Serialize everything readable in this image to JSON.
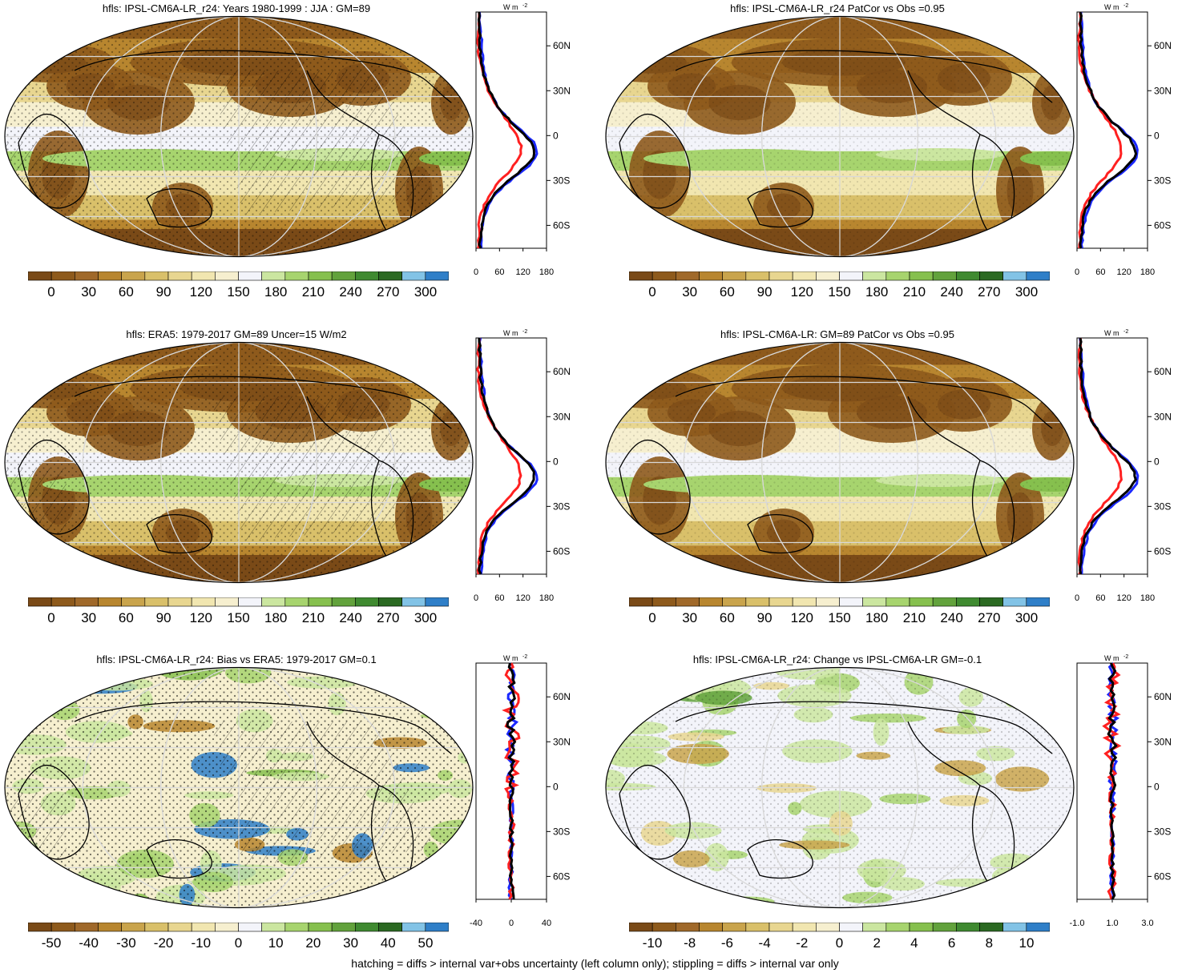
{
  "footer": "hatching = diffs > internal var+obs uncertainty (left column only); stippling = diffs > internal var only",
  "colors": {
    "scale": [
      "#7a4a17",
      "#8e5a1c",
      "#a0692a",
      "#b8862f",
      "#c9a44c",
      "#d9c06a",
      "#e8d690",
      "#f1e6b0",
      "#f6efcf",
      "#f3f4fa",
      "#cbe6a0",
      "#a7d46e",
      "#86c04e",
      "#62a23c",
      "#3f8a30",
      "#2b6a22",
      "#82c3e6",
      "#2f7fc8"
    ],
    "profile_black": "#000000",
    "profile_red": "#ff2020",
    "profile_blue": "#1a28ff"
  },
  "lat_labels": [
    "60N",
    "30N",
    "0",
    "30S",
    "60S"
  ],
  "unit_label": "W m",
  "unit_exp": "-2",
  "panels": [
    {
      "id": "p1",
      "title": "hfls: IPSL-CM6A-LR_r24: Years 1980-1999 : JJA : GM=89",
      "kind": "abs",
      "hatch": true,
      "cbar_labels": [
        "0",
        "30",
        "60",
        "90",
        "120",
        "150",
        "180",
        "210",
        "240",
        "270",
        "300"
      ],
      "profile_ticks": [
        "0",
        "60",
        "120",
        "180"
      ]
    },
    {
      "id": "p2",
      "title": "hfls: IPSL-CM6A-LR_r24 PatCor vs Obs =0.95",
      "kind": "abs",
      "hatch": false,
      "cbar_labels": [
        "0",
        "30",
        "60",
        "90",
        "120",
        "150",
        "180",
        "210",
        "240",
        "270",
        "300"
      ],
      "profile_ticks": [
        "0",
        "60",
        "120",
        "180"
      ]
    },
    {
      "id": "p3",
      "title": "hfls: ERA5: 1979-2017 GM=89 Uncer=15 W/m2",
      "kind": "abs",
      "hatch": true,
      "cbar_labels": [
        "0",
        "30",
        "60",
        "90",
        "120",
        "150",
        "180",
        "210",
        "240",
        "270",
        "300"
      ],
      "profile_ticks": [
        "0",
        "60",
        "120",
        "180"
      ]
    },
    {
      "id": "p4",
      "title": "hfls: IPSL-CM6A-LR: GM=89 PatCor vs Obs =0.95",
      "kind": "abs",
      "hatch": false,
      "cbar_labels": [
        "0",
        "30",
        "60",
        "90",
        "120",
        "150",
        "180",
        "210",
        "240",
        "270",
        "300"
      ],
      "profile_ticks": [
        "0",
        "60",
        "120",
        "180"
      ]
    },
    {
      "id": "p5",
      "title": "hfls: IPSL-CM6A-LR_r24: Bias vs ERA5: 1979-2017 GM=0.1",
      "kind": "diff",
      "hatch": true,
      "cbar_labels": [
        "-50",
        "-40",
        "-30",
        "-20",
        "-10",
        "0",
        "10",
        "20",
        "30",
        "40",
        "50"
      ],
      "profile_ticks": [
        "-40",
        "0",
        "40"
      ]
    },
    {
      "id": "p6",
      "title": "hfls: IPSL-CM6A-LR_r24: Change vs IPSL-CM6A-LR GM=-0.1",
      "kind": "diff2",
      "hatch": false,
      "cbar_labels": [
        "-10",
        "-8",
        "-6",
        "-4",
        "-2",
        "0",
        "2",
        "4",
        "6",
        "8",
        "10"
      ],
      "profile_ticks": [
        "-1.0",
        "1.0",
        "3.0"
      ]
    }
  ]
}
